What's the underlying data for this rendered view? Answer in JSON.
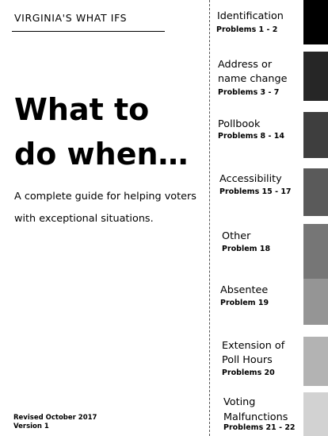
{
  "series_title": "VIRGINIA'S WHAT IFS",
  "headline": "What to\ndo when…",
  "subtitle": "A complete guide for helping voters with exceptional situations.",
  "revised": "Revised October 2017",
  "version": "Version 1",
  "tabs": [
    {
      "title": "Identification",
      "problems": "Problems 1 - 2",
      "color": "#000000"
    },
    {
      "title": "Address or\nname change",
      "problems": "Problems 3 - 7",
      "color": "#262626"
    },
    {
      "title": "Pollbook",
      "problems": "Problems 8 - 14",
      "color": "#3e3e3e"
    },
    {
      "title": "Accessibility",
      "problems": "Problems 15 - 17",
      "color": "#5a5a5a"
    },
    {
      "title": "Other",
      "problems": "Problem 18",
      "color": "#767676"
    },
    {
      "title": "Absentee",
      "problems": "Problem 19",
      "color": "#959595"
    },
    {
      "title": "Extension of\nPoll Hours",
      "problems": "Problems 20",
      "color": "#b3b3b3"
    },
    {
      "title": "Voting\nMalfunctions",
      "problems": "Problems 21 - 22",
      "color": "#d2d2d2"
    }
  ]
}
